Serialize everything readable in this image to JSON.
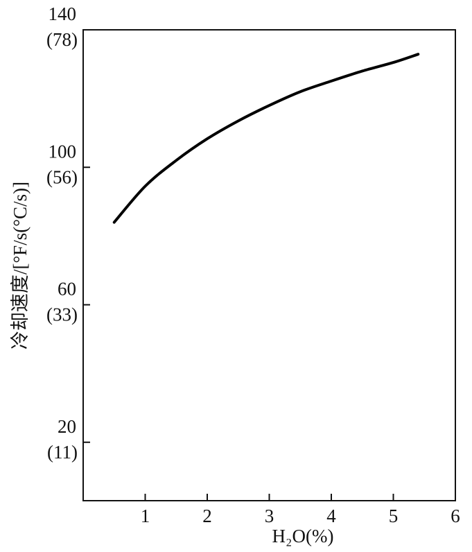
{
  "chart_data": {
    "type": "line",
    "x_label": "H₂O(%)",
    "y_label": "冷却速度/[°F/s(°C/s)]",
    "x": [
      0.5,
      1,
      1.5,
      2,
      2.5,
      3,
      3.5,
      4,
      4.5,
      5,
      5.4
    ],
    "series": [
      {
        "color": "#000000",
        "values": [
          84,
          94.5,
          102,
          108.3,
          113.5,
          118,
          122,
          125.1,
          128,
          130.5,
          132.9
        ]
      }
    ],
    "xlim": [
      0,
      6
    ],
    "xticks": [
      1,
      2,
      3,
      4,
      5,
      6
    ],
    "ylim": [
      3,
      140
    ],
    "yticks": [
      20,
      60,
      100,
      140
    ],
    "ytick_secondary_labels": [
      "(11)",
      "(33)",
      "(56)",
      "(78)"
    ],
    "grid": false
  }
}
